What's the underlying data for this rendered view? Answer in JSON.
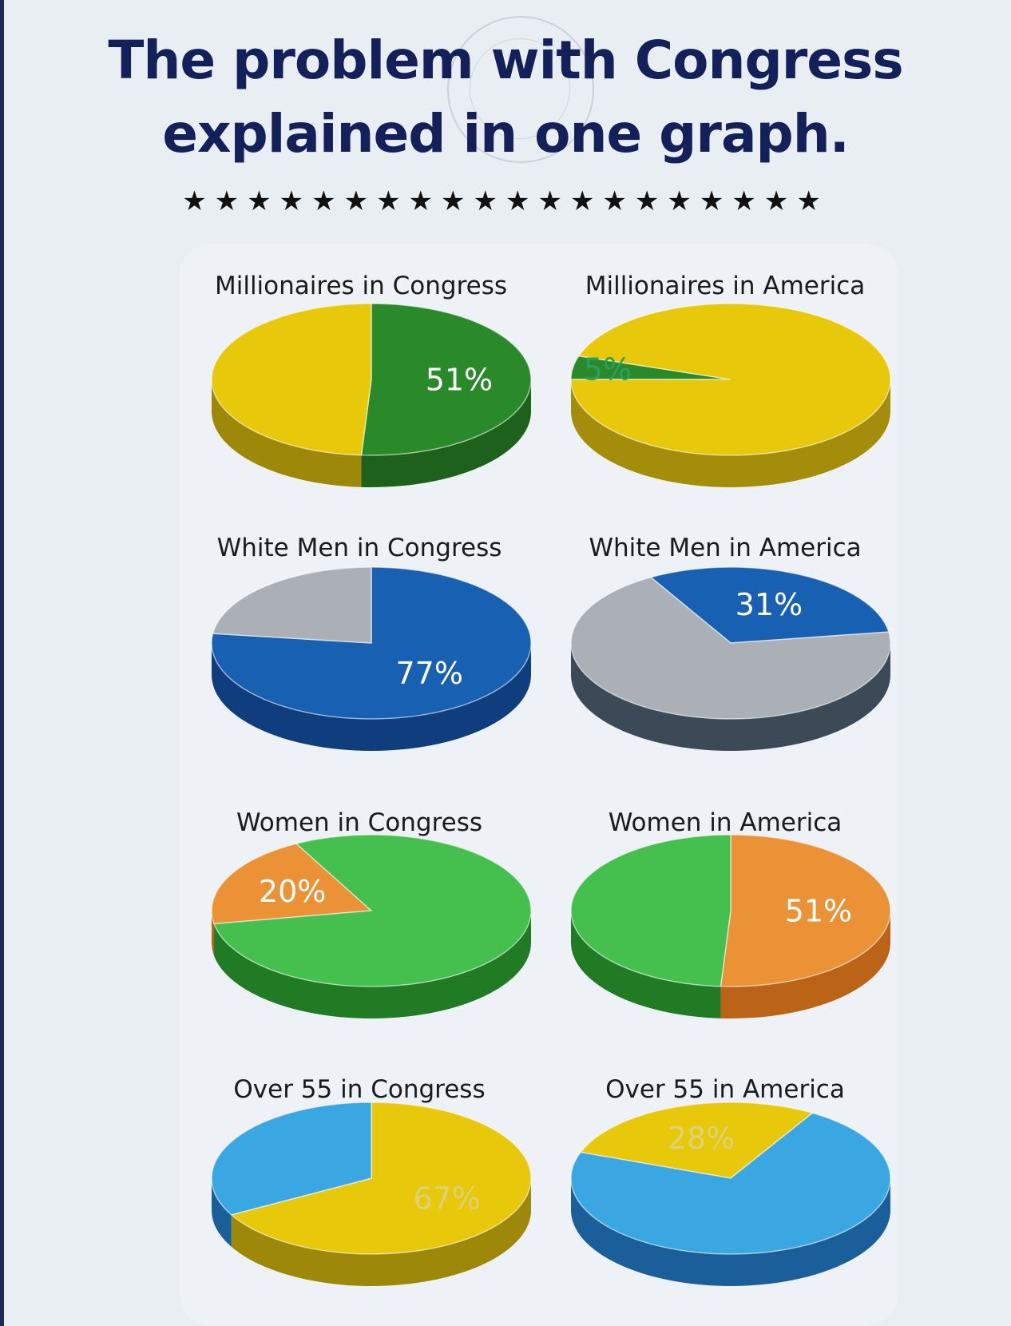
{
  "title": {
    "line1": "The problem with Congress",
    "line2": "explained in one graph."
  },
  "stars": "★★★★★★★★★★★★★★★★★★★★",
  "chart_data": [
    {
      "type": "pie",
      "title": "Millionaires in Congress",
      "values": [
        51,
        49
      ],
      "label": "51%",
      "colors": [
        "#2a8a2a",
        "#e8c80a"
      ],
      "sides": [
        "#1d611d",
        "#9e880a"
      ],
      "start": 270,
      "labelColor": "#ffffff"
    },
    {
      "type": "pie",
      "title": "Millionaires in America",
      "values": [
        5,
        95
      ],
      "label": "5%",
      "colors": [
        "#2a8a2a",
        "#e8c80a"
      ],
      "sides": [
        "#1d611d",
        "#a48d0a"
      ],
      "start": 180,
      "labelColor": "#2aa060"
    },
    {
      "type": "pie",
      "title": "White Men in Congress",
      "values": [
        77,
        23
      ],
      "label": "77%",
      "colors": [
        "#1860b2",
        "#aab0b6"
      ],
      "sides": [
        "#0f3d7d",
        "#6c7378"
      ],
      "start": 270,
      "labelColor": "#ffffff"
    },
    {
      "type": "pie",
      "title": "White Men in America",
      "values": [
        31,
        69
      ],
      "label": "31%",
      "colors": [
        "#1860b2",
        "#aab0b6"
      ],
      "sides": [
        "#0f3d7d",
        "#3c4a58"
      ],
      "start": 240,
      "labelColor": "#ffffff"
    },
    {
      "type": "pie",
      "title": "Women in Congress",
      "values": [
        20,
        80
      ],
      "label": "20%",
      "colors": [
        "#ea9235",
        "#45c04e"
      ],
      "sides": [
        "#bb6417",
        "#217a24"
      ],
      "start": 170,
      "labelColor": "#ffffff"
    },
    {
      "type": "pie",
      "title": "Women in America",
      "values": [
        51,
        49
      ],
      "label": "51%",
      "colors": [
        "#ea9235",
        "#45c04e"
      ],
      "sides": [
        "#bb6417",
        "#217a24"
      ],
      "start": 270,
      "labelColor": "#ffffff"
    },
    {
      "type": "pie",
      "title": "Over 55 in Congress",
      "values": [
        67,
        33
      ],
      "label": "67%",
      "colors": [
        "#e8c80a",
        "#3aa6e2"
      ],
      "sides": [
        "#9e880a",
        "#1b5f9a"
      ],
      "start": 270,
      "labelColor": "#ddd27a"
    },
    {
      "type": "pie",
      "title": "Over 55 in America",
      "values": [
        28,
        72
      ],
      "label": "28%",
      "colors": [
        "#e8c80a",
        "#3aa6e2"
      ],
      "sides": [
        "#9e880a",
        "#1b5f9a"
      ],
      "start": 200,
      "labelColor": "#ddd27a"
    }
  ]
}
